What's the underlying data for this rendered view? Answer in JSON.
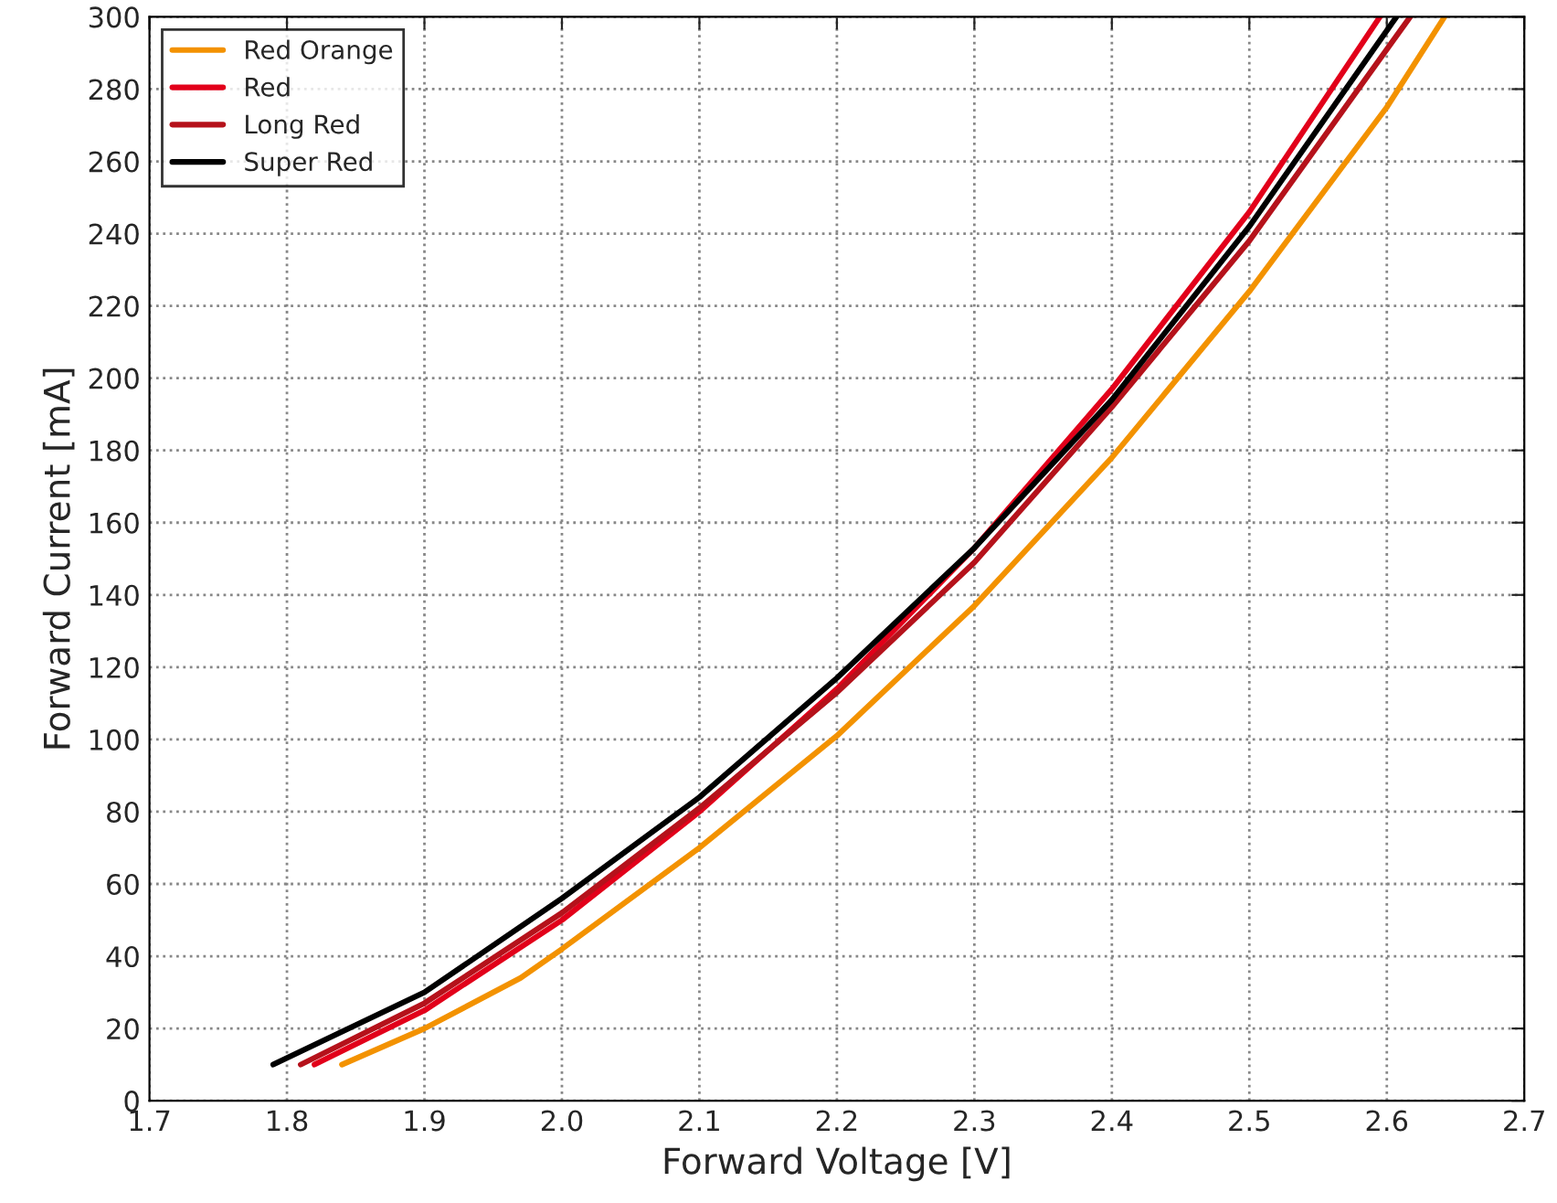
{
  "chart_data": {
    "type": "line",
    "xlabel": "Forward Voltage [V]",
    "ylabel": "Forward Current [mA]",
    "xlim": [
      1.7,
      2.7
    ],
    "ylim": [
      0,
      300
    ],
    "xticks": [
      1.7,
      1.8,
      1.9,
      {
        "value": 2.0,
        "label": "2.0"
      },
      2.1,
      2.2,
      2.3,
      2.4,
      2.5,
      2.6,
      2.7
    ],
    "yticks": [
      0,
      20,
      40,
      60,
      80,
      100,
      120,
      140,
      160,
      180,
      200,
      220,
      240,
      260,
      280,
      300
    ],
    "grid": true,
    "legend": "top left",
    "line_style": "solid",
    "marker": "none",
    "series": [
      {
        "name": "Red Orange",
        "color": "#f39200",
        "x": [
          1.84,
          1.9,
          1.97,
          2.0,
          2.1,
          2.2,
          2.3,
          2.4,
          2.5,
          2.6,
          2.642
        ],
        "values": [
          10,
          20,
          34,
          42,
          70,
          101,
          137,
          178,
          224,
          275,
          300
        ]
      },
      {
        "name": "Red",
        "color": "#e2001a",
        "x": [
          1.82,
          1.9,
          2.0,
          2.1,
          2.2,
          2.3,
          2.4,
          2.5,
          2.595
        ],
        "values": [
          10,
          25,
          50,
          80,
          114,
          153,
          197,
          246,
          300
        ]
      },
      {
        "name": "Long Red",
        "color": "#b5121b",
        "x": [
          1.81,
          1.9,
          2.0,
          2.1,
          2.2,
          2.3,
          2.4,
          2.5,
          2.617
        ],
        "values": [
          10,
          27,
          52,
          81,
          113,
          149,
          192,
          238,
          300
        ]
      },
      {
        "name": "Super Red",
        "color": "#000000",
        "x": [
          1.79,
          1.9,
          2.0,
          2.1,
          2.2,
          2.3,
          2.4,
          2.5,
          2.607
        ],
        "values": [
          10,
          30,
          56,
          84,
          117,
          153,
          194,
          242,
          300
        ]
      }
    ]
  }
}
